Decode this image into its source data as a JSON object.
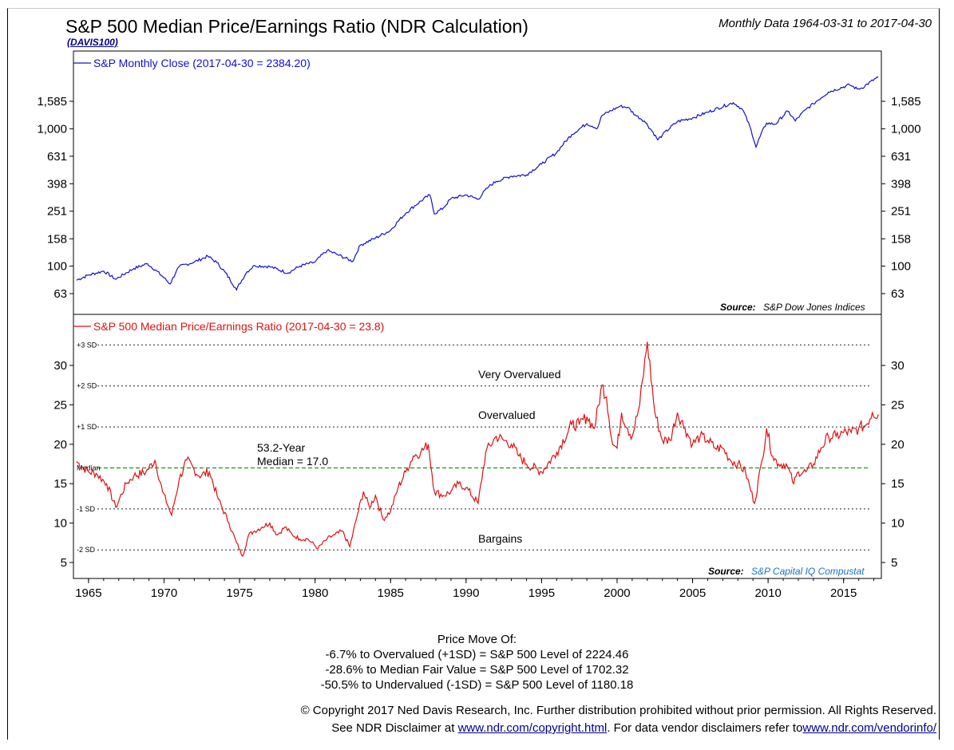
{
  "header": {
    "title": "S&P 500 Median Price/Earnings Ratio (NDR Calculation)",
    "code": "(DAVIS100)",
    "date_range": "Monthly Data 1964-03-31 to 2017-04-30"
  },
  "colors": {
    "price": "#1010d0",
    "pe": "#e01010",
    "median": "#2a9a2a",
    "sd": "#222222"
  },
  "chart_data": [
    {
      "type": "line",
      "scale": "log",
      "legend": "S&P Monthly Close (2017-04-30 = 2384.20)",
      "source_label": "Source:",
      "source": "S&P Dow Jones Indices",
      "y_ticks": [
        63,
        100,
        158,
        251,
        398,
        631,
        1000,
        1585
      ],
      "y_tick_labels": [
        "63",
        "100",
        "158",
        "251",
        "398",
        "631",
        "1,000",
        "1,585"
      ],
      "x": [
        1964.2,
        1965,
        1966,
        1966.8,
        1968,
        1968.9,
        1970.4,
        1971,
        1972,
        1972.9,
        1973.5,
        1974.8,
        1975.5,
        1976,
        1977,
        1978.2,
        1979,
        1980,
        1980.8,
        1981.5,
        1982.5,
        1983,
        1984,
        1985,
        1986,
        1987.6,
        1987.9,
        1988.5,
        1989,
        1990,
        1990.8,
        1991.5,
        1992,
        1993,
        1994,
        1995,
        1996,
        1997,
        1998,
        1998.7,
        1999,
        2000.2,
        2000.7,
        2001.2,
        2001.8,
        2002.7,
        2003,
        2004,
        2005,
        2006,
        2007.7,
        2008.3,
        2009.2,
        2009.9,
        2010.5,
        2011.3,
        2011.8,
        2012.5,
        2013,
        2014,
        2015.4,
        2015.9,
        2016.2,
        2017.3
      ],
      "y": [
        79,
        86,
        92,
        80,
        96,
        104,
        74,
        99,
        107,
        118,
        106,
        67,
        91,
        101,
        99,
        89,
        100,
        107,
        130,
        121,
        108,
        142,
        160,
        182,
        242,
        330,
        240,
        265,
        310,
        330,
        307,
        379,
        414,
        452,
        462,
        553,
        670,
        907,
        1090,
        1010,
        1250,
        1460,
        1435,
        1260,
        1140,
        830,
        900,
        1130,
        1200,
        1320,
        1549,
        1385,
        735,
        1100,
        1080,
        1345,
        1140,
        1380,
        1520,
        1850,
        2090,
        1950,
        1980,
        2384
      ]
    },
    {
      "type": "line",
      "legend": "S&P 500 Median Price/Earnings Ratio (2017-04-30 = 23.8)",
      "source_label": "Source:",
      "source": "S&P Capital IQ Compustat",
      "y_ticks": [
        5,
        10,
        15,
        20,
        25,
        30
      ],
      "x": [
        1964.2,
        1965,
        1965.5,
        1966.2,
        1966.8,
        1967.5,
        1968,
        1968.8,
        1969.4,
        1969.9,
        1970.5,
        1971,
        1971.5,
        1972.3,
        1973,
        1973.6,
        1974.3,
        1974.8,
        1975.2,
        1975.6,
        1976,
        1976.5,
        1977,
        1977.5,
        1978,
        1978.5,
        1979,
        1979.5,
        1980.2,
        1980.8,
        1981.3,
        1981.8,
        1982.3,
        1982.8,
        1983.2,
        1983.6,
        1984,
        1984.5,
        1985,
        1985.5,
        1986,
        1986.5,
        1987,
        1987.5,
        1987.9,
        1988.5,
        1989,
        1989.5,
        1990,
        1990.8,
        1991.3,
        1992,
        1992.5,
        1993,
        1993.5,
        1994,
        1995,
        1996,
        1997,
        1997.5,
        1998,
        1998.5,
        1999,
        1999.3,
        1999.7,
        2000,
        2000.3,
        2000.7,
        2001,
        2001.5,
        2002,
        2002.5,
        2003,
        2003.5,
        2004,
        2004.5,
        2005,
        2005.5,
        2006,
        2006.5,
        2007,
        2007.5,
        2008,
        2008.5,
        2009.1,
        2009.6,
        2009.9,
        2010.3,
        2010.7,
        2011.2,
        2011.7,
        2012,
        2012.5,
        2013,
        2013.5,
        2014,
        2014.5,
        2015,
        2015.5,
        2016,
        2016.5,
        2016.9,
        2017.3
      ],
      "y": [
        17.8,
        16.5,
        16.3,
        15.0,
        12.0,
        15.0,
        16.0,
        16.5,
        18.0,
        14.0,
        11.0,
        15.5,
        18.0,
        16.0,
        16.5,
        13.0,
        10.0,
        7.5,
        5.8,
        8.5,
        9.0,
        9.5,
        10.0,
        8.5,
        9.5,
        8.5,
        8.0,
        8.0,
        6.8,
        8.0,
        8.5,
        9.0,
        7.0,
        11.0,
        14.0,
        12.0,
        13.5,
        10.5,
        11.5,
        14.5,
        16.5,
        18.5,
        19.0,
        20.0,
        14.0,
        13.5,
        14.0,
        15.0,
        14.5,
        12.5,
        19.0,
        21.0,
        20.5,
        20.0,
        18.5,
        17.5,
        16.5,
        19.0,
        22.5,
        22.5,
        23.5,
        22.0,
        27.5,
        26.0,
        20.0,
        19.5,
        24.0,
        22.0,
        21.0,
        25.0,
        33.0,
        24.0,
        20.5,
        20.5,
        24.0,
        22.0,
        20.0,
        21.0,
        20.5,
        19.5,
        19.5,
        18.0,
        17.5,
        16.5,
        12.5,
        18.0,
        22.0,
        18.5,
        17.5,
        17.5,
        15.0,
        16.5,
        16.5,
        17.5,
        19.5,
        21.0,
        21.0,
        21.5,
        21.5,
        22.0,
        22.5,
        24.0,
        23.8
      ],
      "reference_lines": [
        {
          "label": "+3 SD",
          "value": 32.6
        },
        {
          "label": "+2 SD",
          "value": 27.4
        },
        {
          "label": "+1 SD",
          "value": 22.2
        },
        {
          "label": "Median",
          "value": 17.0
        },
        {
          "label": "-1 SD",
          "value": 11.8
        },
        {
          "label": "-2 SD",
          "value": 6.6
        }
      ],
      "annotations": [
        "Very Overvalued",
        "Overvalued",
        "53.2-Year",
        "Median = 17.0",
        "Bargains"
      ]
    }
  ],
  "x_axis": {
    "ticks": [
      1965,
      1970,
      1975,
      1980,
      1985,
      1990,
      1995,
      2000,
      2005,
      2010,
      2015
    ],
    "labels": [
      "1965",
      "1970",
      "1975",
      "1980",
      "1985",
      "1990",
      "1995",
      "2000",
      "2005",
      "2010",
      "2015"
    ]
  },
  "price_move": {
    "heading": "Price Move Of:",
    "line1": "-6.7% to Overvalued (+1SD) = S&P 500 Level of 2224.46",
    "line2": "-28.6% to Median Fair Value = S&P 500 Level of 1702.32",
    "line3": "-50.5% to Undervalued (-1SD) = S&P 500 Level of 1180.18"
  },
  "footer": {
    "copyright": "© Copyright 2017 Ned Davis Research, Inc. Further distribution prohibited without prior permission. All Rights Reserved.",
    "disclaimer_prefix": "See NDR Disclaimer at ",
    "disclaimer_link": "www.ndr.com/copyright.html",
    "disclaimer_mid": ". For data vendor disclaimers refer to",
    "vendor_link": "www.ndr.com/vendorinfo/"
  }
}
